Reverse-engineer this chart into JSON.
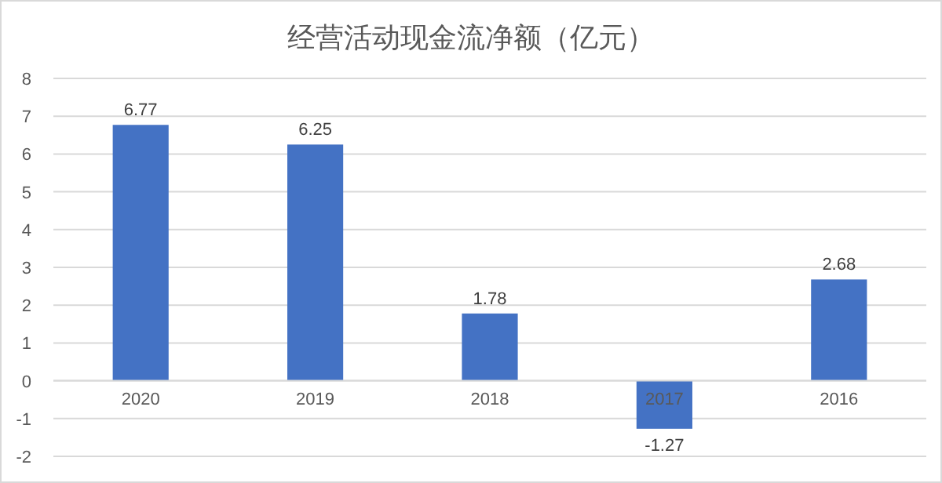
{
  "chart_data": {
    "type": "bar",
    "title": "经营活动现金流净额（亿元）",
    "categories": [
      "2020",
      "2019",
      "2018",
      "2017",
      "2016"
    ],
    "values": [
      6.77,
      6.25,
      1.78,
      -1.27,
      2.68
    ],
    "color": "#4472c4",
    "ylim": [
      -2,
      8
    ],
    "yticks": [
      -2,
      -1,
      0,
      1,
      2,
      3,
      4,
      5,
      6,
      7,
      8
    ],
    "grid": "y",
    "data_labels": true
  }
}
